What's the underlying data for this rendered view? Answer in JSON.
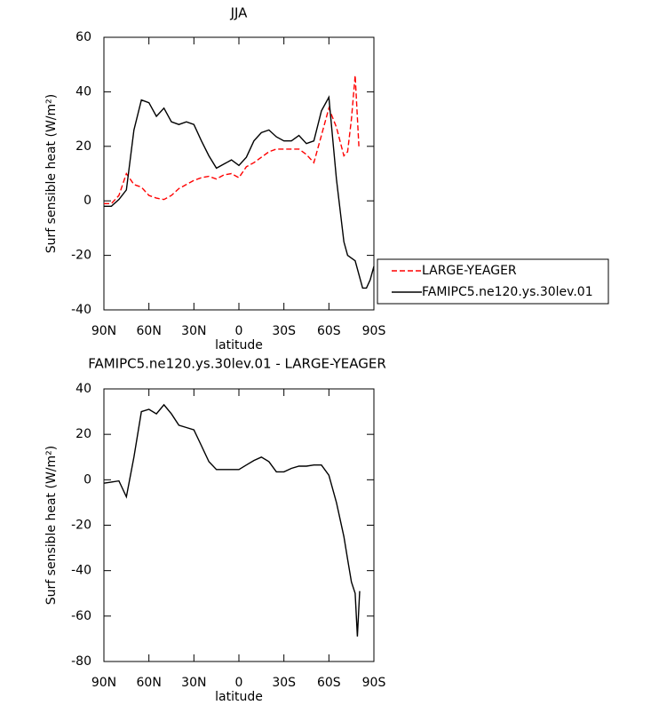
{
  "chart_data": [
    {
      "type": "line",
      "title": "JJA",
      "xlabel": "latitude",
      "ylabel": "Surf sensible heat (W/m²)",
      "x": [
        90,
        85,
        80,
        75,
        70,
        65,
        60,
        55,
        50,
        45,
        40,
        35,
        30,
        25,
        20,
        15,
        10,
        5,
        0,
        -5,
        -10,
        -15,
        -20,
        -25,
        -30,
        -35,
        -40,
        -45,
        -50,
        -55,
        -60,
        -65,
        -70,
        -72.5,
        -75,
        -77.5,
        -80,
        -82.5,
        -85,
        -87.5,
        -90
      ],
      "series": [
        {
          "name": "LARGE-YEAGER",
          "color": "#ff0000",
          "dash": true,
          "values": [
            -1,
            -1,
            2,
            10,
            6,
            5,
            2,
            1,
            0.5,
            2,
            4.5,
            6,
            7.5,
            8.5,
            9,
            8,
            9.5,
            10,
            8.5,
            12.5,
            14,
            16,
            18,
            19,
            19,
            19,
            19,
            17,
            14,
            24,
            34,
            27,
            16.5,
            18,
            30,
            46,
            20,
            null,
            null,
            null,
            null
          ]
        },
        {
          "name": "FAMIPC5.ne120.ys.30lev.01",
          "color": "#000000",
          "dash": false,
          "values": [
            -2,
            -2,
            0.5,
            4,
            26,
            37,
            36,
            31,
            34,
            29,
            28,
            29,
            28,
            22,
            16.5,
            12,
            13.5,
            15,
            13,
            16,
            22,
            25,
            26,
            23.5,
            22,
            22,
            24,
            21,
            22,
            33,
            38,
            8,
            -15,
            -20,
            -21,
            -22,
            -27,
            -32,
            -32,
            -29,
            -24
          ]
        }
      ],
      "xlim": [
        90,
        -90
      ],
      "xticks": [
        {
          "value": 90,
          "label": "90N"
        },
        {
          "value": 60,
          "label": "60N"
        },
        {
          "value": 30,
          "label": "30N"
        },
        0,
        {
          "value": -30,
          "label": "30S"
        },
        {
          "value": -60,
          "label": "60S"
        },
        {
          "value": -90,
          "label": "90S"
        }
      ],
      "ylim": [
        -40,
        60
      ],
      "yticks": [
        -40,
        -20,
        0,
        20,
        40,
        60
      ],
      "legend": "right"
    },
    {
      "type": "line",
      "title": "FAMIPC5.ne120.ys.30lev.01 - LARGE-YEAGER",
      "xlabel": "latitude",
      "ylabel": "Surf sensible heat (W/m²)",
      "x": [
        90,
        85,
        80,
        75,
        70,
        65,
        60,
        55,
        50,
        45,
        40,
        35,
        30,
        25,
        20,
        15,
        10,
        5,
        0,
        -5,
        -10,
        -15,
        -20,
        -25,
        -30,
        -35,
        -40,
        -45,
        -50,
        -55,
        -60,
        -65,
        -70,
        -72.5,
        -75,
        -77.5,
        -79,
        -80.5
      ],
      "series": [
        {
          "color": "#000000",
          "dash": false,
          "values": [
            -1.5,
            -1,
            -0.5,
            -7.5,
            10,
            30,
            31,
            29,
            33,
            29,
            24,
            23,
            22,
            15,
            8,
            4.5,
            4.5,
            4.5,
            4.5,
            6.5,
            8.5,
            10,
            8,
            3.5,
            3.5,
            5,
            6,
            6,
            6.5,
            6.5,
            2,
            -10,
            -25,
            -35,
            -45,
            -50,
            -69,
            -49
          ]
        }
      ],
      "xlim": [
        90,
        -90
      ],
      "xticks": [
        {
          "value": 90,
          "label": "90N"
        },
        {
          "value": 60,
          "label": "60N"
        },
        {
          "value": 30,
          "label": "30N"
        },
        0,
        {
          "value": -30,
          "label": "30S"
        },
        {
          "value": -60,
          "label": "60S"
        },
        {
          "value": -90,
          "label": "90S"
        }
      ],
      "ylim": [
        -80,
        40
      ],
      "yticks": [
        -80,
        -60,
        -40,
        -20,
        0,
        20,
        40
      ]
    }
  ]
}
